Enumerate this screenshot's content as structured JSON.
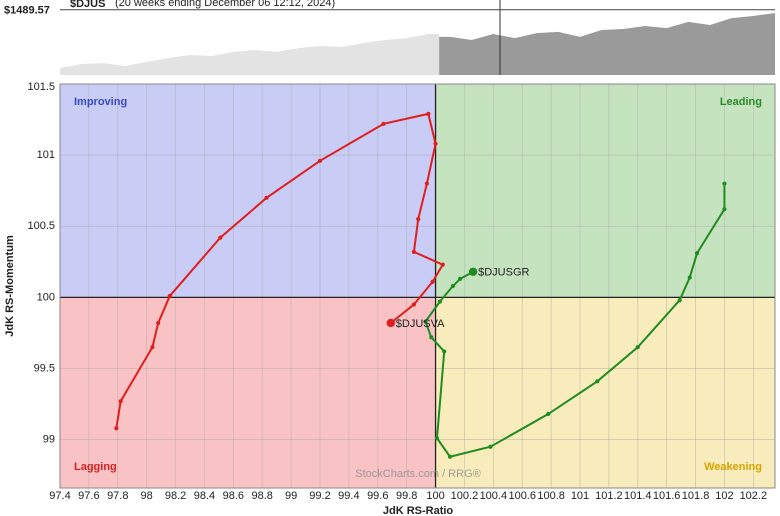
{
  "chart_data": [
    {
      "type": "area",
      "title": "$DJUS",
      "subtitle": "(20 weeks ending December 06 12:12, 2024)",
      "ylim": [
        1150,
        1540
      ],
      "yticks": [
        {
          "value": 1489.57,
          "label": "$1489.57"
        }
      ],
      "series": [
        {
          "color": "#e3e3e3",
          "values": [
            1186,
            1207,
            1212,
            1197,
            1218,
            1238,
            1254,
            1249,
            1270,
            1280,
            1270,
            1290,
            1301,
            1296,
            1316,
            1332,
            1342,
            1363,
            null,
            null,
            null,
            null,
            null,
            null,
            null,
            null,
            null,
            null,
            null,
            null,
            null,
            null,
            null,
            null
          ]
        },
        {
          "color": "#9a9a9a",
          "values": [
            null,
            null,
            null,
            null,
            null,
            null,
            null,
            null,
            null,
            null,
            null,
            null,
            null,
            null,
            null,
            null,
            null,
            null,
            1348,
            1332,
            1363,
            1342,
            1368,
            1374,
            1348,
            1384,
            1389,
            1405,
            1394,
            1426,
            1410,
            1446,
            1457,
            1472
          ]
        }
      ]
    },
    {
      "type": "rrg",
      "x_label": "JdK RS-Ratio",
      "y_label": "JdK RS-Momentum",
      "watermark": "StockCharts.com / RRG®",
      "xlim": [
        97.4,
        102.35
      ],
      "ylim": [
        98.66,
        101.5
      ],
      "xticks": [
        97.4,
        97.6,
        97.8,
        98,
        98.2,
        98.4,
        98.6,
        98.8,
        99,
        99.2,
        99.4,
        99.6,
        99.8,
        100,
        100.2,
        100.4,
        100.6,
        100.8,
        101,
        101.2,
        101.4,
        101.6,
        101.8,
        102,
        102.2
      ],
      "yticks": [
        99,
        99.5,
        100,
        100.5,
        101,
        101.5
      ],
      "center": [
        100,
        100
      ],
      "quadrants": [
        {
          "label": "Improving",
          "position": "top-left",
          "color": "#c9ccf5",
          "text_color": "#3a4ac0"
        },
        {
          "label": "Leading",
          "position": "top-right",
          "color": "#c6e3c0",
          "text_color": "#2a8a2a"
        },
        {
          "label": "Lagging",
          "position": "bottom-left",
          "color": "#f9c3c5",
          "text_color": "#d42020"
        },
        {
          "label": "Weakening",
          "position": "bottom-right",
          "color": "#f8ecbc",
          "text_color": "#d8a400"
        }
      ],
      "series": [
        {
          "name": "$DJUSGR",
          "color": "#1f8c1f",
          "x": [
            102.0,
            102.0,
            101.81,
            101.76,
            101.69,
            101.4,
            101.12,
            100.78,
            100.38,
            100.1,
            100.01,
            100.06,
            99.97,
            99.93,
            100.03,
            100.12,
            100.17,
            100.26
          ],
          "values": [
            100.8,
            100.62,
            100.31,
            100.14,
            99.98,
            99.65,
            99.41,
            99.18,
            98.95,
            98.88,
            99.01,
            99.62,
            99.72,
            99.83,
            99.97,
            100.08,
            100.13,
            100.18
          ]
        },
        {
          "name": "$DJUSVA",
          "color": "#e01e1e",
          "x": [
            97.79,
            97.82,
            98.04,
            98.08,
            98.16,
            98.51,
            98.83,
            99.2,
            99.64,
            99.95,
            100.0,
            99.94,
            99.88,
            99.85,
            100.05,
            99.98,
            99.85,
            99.69
          ],
          "values": [
            99.08,
            99.27,
            99.65,
            99.82,
            100.01,
            100.42,
            100.7,
            100.96,
            101.22,
            101.29,
            101.08,
            100.8,
            100.55,
            100.32,
            100.23,
            100.11,
            99.95,
            99.82
          ]
        }
      ]
    }
  ]
}
